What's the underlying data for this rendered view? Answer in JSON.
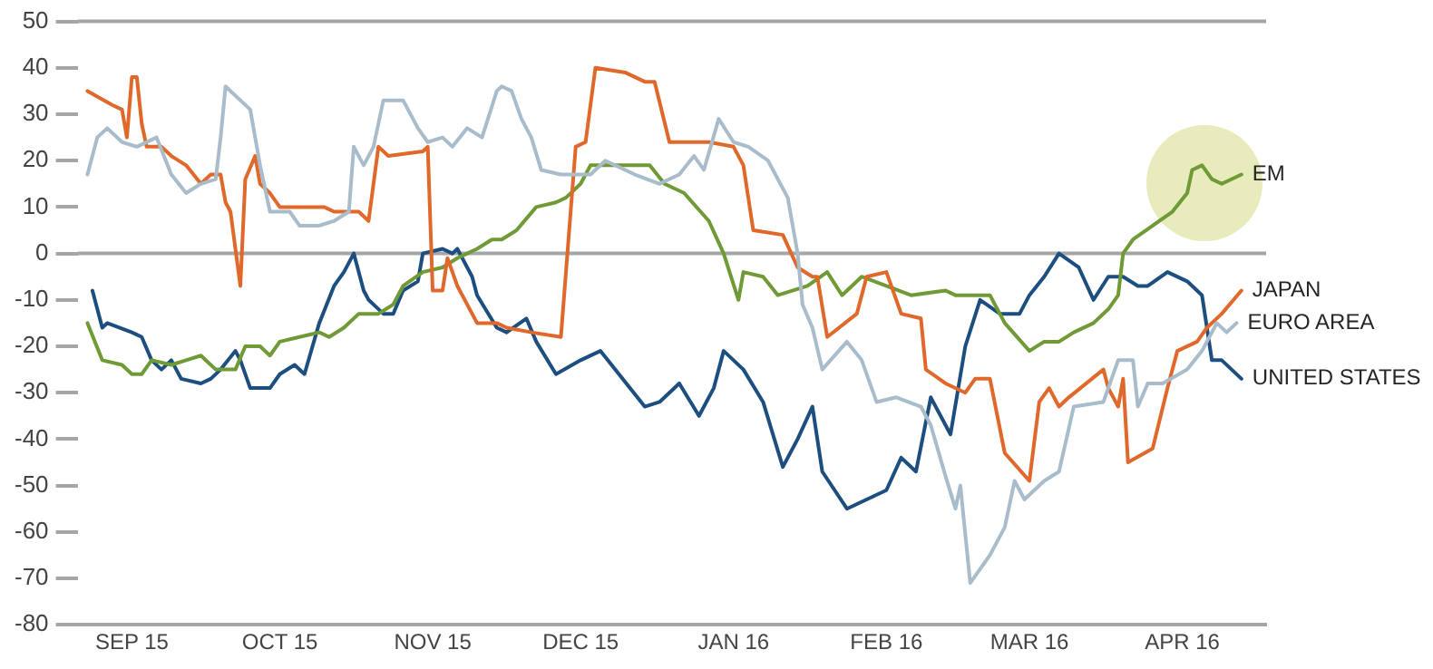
{
  "chart_data": {
    "type": "line",
    "xlim": [
      "2015-09-04",
      "2016-05-02"
    ],
    "ylim": [
      -80,
      50
    ],
    "xticks": [
      {
        "value": "2015-09-15",
        "label": "SEP 15"
      },
      {
        "value": "2015-10-15",
        "label": "OCT 15"
      },
      {
        "value": "2015-11-15",
        "label": "NOV 15"
      },
      {
        "value": "2015-12-15",
        "label": "DEC 15"
      },
      {
        "value": "2016-01-15",
        "label": "JAN 16"
      },
      {
        "value": "2016-02-15",
        "label": "FEB 16"
      },
      {
        "value": "2016-03-15",
        "label": "MAR 16"
      },
      {
        "value": "2016-04-15",
        "label": "APR 16"
      }
    ],
    "yticks": [
      -80,
      -70,
      -60,
      -50,
      -40,
      -30,
      -20,
      -10,
      0,
      10,
      20,
      30,
      40,
      50
    ],
    "grid": false,
    "legend": false,
    "marker": "none",
    "line_style": "solid",
    "ref_lines": [
      {
        "axis": "y",
        "value": 0
      }
    ],
    "series": [
      {
        "name": "EURO AREA",
        "color": "#a9bccb",
        "x": [
          "2015-09-06",
          "2015-09-08",
          "2015-09-10",
          "2015-09-13",
          "2015-09-16",
          "2015-09-20",
          "2015-09-23",
          "2015-09-26",
          "2015-09-29",
          "2015-10-02",
          "2015-10-03",
          "2015-10-04",
          "2015-10-07",
          "2015-10-09",
          "2015-10-11",
          "2015-10-13",
          "2015-10-17",
          "2015-10-19",
          "2015-10-23",
          "2015-10-26",
          "2015-10-29",
          "2015-10-30",
          "2015-11-01",
          "2015-11-03",
          "2015-11-05",
          "2015-11-09",
          "2015-11-12",
          "2015-11-14",
          "2015-11-17",
          "2015-11-19",
          "2015-11-22",
          "2015-11-25",
          "2015-11-28",
          "2015-11-29",
          "2015-12-01",
          "2015-12-03",
          "2015-12-05",
          "2015-12-07",
          "2015-12-11",
          "2015-12-17",
          "2015-12-20",
          "2015-12-26",
          "2015-12-31",
          "2016-01-04",
          "2016-01-07",
          "2016-01-09",
          "2016-01-12",
          "2016-01-15",
          "2016-01-18",
          "2016-01-22",
          "2016-01-26",
          "2016-01-28",
          "2016-01-29",
          "2016-01-31",
          "2016-02-02",
          "2016-02-07",
          "2016-02-10",
          "2016-02-13",
          "2016-02-17",
          "2016-02-22",
          "2016-02-24",
          "2016-02-27",
          "2016-02-29",
          "2016-03-01",
          "2016-03-03",
          "2016-03-07",
          "2016-03-10",
          "2016-03-12",
          "2016-03-14",
          "2016-03-18",
          "2016-03-21",
          "2016-03-24",
          "2016-03-30",
          "2016-04-02",
          "2016-04-05",
          "2016-04-06",
          "2016-04-08",
          "2016-04-11",
          "2016-04-16",
          "2016-04-19",
          "2016-04-22",
          "2016-04-24",
          "2016-04-26"
        ],
        "values": [
          17,
          25,
          27,
          24,
          23,
          25,
          17,
          13,
          15,
          16,
          25,
          36,
          33,
          31,
          19,
          9,
          9,
          6,
          6,
          7,
          9,
          23,
          19,
          23,
          33,
          33,
          27,
          24,
          25,
          23,
          27,
          25,
          35,
          36,
          35,
          29,
          25,
          18,
          17,
          17,
          20,
          17,
          15,
          17,
          21,
          18,
          29,
          24,
          23,
          20,
          12,
          0,
          -11,
          -16,
          -25,
          -19,
          -23,
          -32,
          -31,
          -33,
          -37,
          -48,
          -55,
          -50,
          -71,
          -65,
          -59,
          -49,
          -53,
          -49,
          -47,
          -33,
          -32,
          -23,
          -23,
          -33,
          -28,
          -28,
          -25,
          -21,
          -15,
          -17,
          -15
        ]
      },
      {
        "name": "JAPAN",
        "color": "#e0682b",
        "x": [
          "2015-09-06",
          "2015-09-11",
          "2015-09-13",
          "2015-09-14",
          "2015-09-15",
          "2015-09-16",
          "2015-09-17",
          "2015-09-18",
          "2015-09-21",
          "2015-09-23",
          "2015-09-26",
          "2015-09-29",
          "2015-10-01",
          "2015-10-03",
          "2015-10-04",
          "2015-10-05",
          "2015-10-07",
          "2015-10-08",
          "2015-10-10",
          "2015-10-11",
          "2015-10-13",
          "2015-10-15",
          "2015-10-21",
          "2015-10-24",
          "2015-10-26",
          "2015-10-31",
          "2015-11-02",
          "2015-11-04",
          "2015-11-06",
          "2015-11-13",
          "2015-11-14",
          "2015-11-15",
          "2015-11-17",
          "2015-11-18",
          "2015-11-20",
          "2015-11-24",
          "2015-11-28",
          "2015-11-30",
          "2015-12-05",
          "2015-12-11",
          "2015-12-14",
          "2015-12-16",
          "2015-12-18",
          "2015-12-24",
          "2015-12-28",
          "2015-12-30",
          "2016-01-02",
          "2016-01-10",
          "2016-01-15",
          "2016-01-17",
          "2016-01-19",
          "2016-01-25",
          "2016-01-28",
          "2016-01-31",
          "2016-02-01",
          "2016-02-03",
          "2016-02-09",
          "2016-02-11",
          "2016-02-15",
          "2016-02-18",
          "2016-02-22",
          "2016-02-23",
          "2016-02-27",
          "2016-03-02",
          "2016-03-04",
          "2016-03-07",
          "2016-03-10",
          "2016-03-15",
          "2016-03-17",
          "2016-03-19",
          "2016-03-21",
          "2016-03-23",
          "2016-03-30",
          "2016-03-31",
          "2016-04-02",
          "2016-04-03",
          "2016-04-04",
          "2016-04-09",
          "2016-04-12",
          "2016-04-14",
          "2016-04-18",
          "2016-04-20",
          "2016-04-23",
          "2016-04-27"
        ],
        "values": [
          35,
          32,
          31,
          25,
          38,
          38,
          28,
          23,
          23,
          21,
          19,
          15,
          17,
          17,
          11,
          9,
          -7,
          16,
          21,
          15,
          13,
          10,
          10,
          10,
          9,
          9,
          7,
          23,
          21,
          22,
          23,
          -8,
          -8,
          -1,
          -7,
          -15,
          -15,
          -16,
          -17,
          -18,
          23,
          24,
          40,
          39,
          37,
          37,
          24,
          24,
          23,
          19,
          5,
          4,
          -3,
          -5,
          -5,
          -18,
          -13,
          -5,
          -4,
          -13,
          -14,
          -25,
          -28,
          -30,
          -27,
          -27,
          -43,
          -49,
          -32,
          -29,
          -33,
          -31,
          -25,
          -29,
          -33,
          -27,
          -45,
          -42,
          -29,
          -21,
          -19,
          -16,
          -13,
          -8
        ]
      },
      {
        "name": "EM",
        "color": "#6f9a35",
        "x": [
          "2015-09-06",
          "2015-09-09",
          "2015-09-13",
          "2015-09-15",
          "2015-09-17",
          "2015-09-19",
          "2015-09-23",
          "2015-09-26",
          "2015-09-29",
          "2015-10-02",
          "2015-10-06",
          "2015-10-08",
          "2015-10-11",
          "2015-10-13",
          "2015-10-15",
          "2015-10-19",
          "2015-10-23",
          "2015-10-25",
          "2015-10-28",
          "2015-10-31",
          "2015-11-04",
          "2015-11-07",
          "2015-11-09",
          "2015-11-13",
          "2015-11-17",
          "2015-11-20",
          "2015-11-24",
          "2015-11-27",
          "2015-11-29",
          "2015-12-02",
          "2015-12-06",
          "2015-12-10",
          "2015-12-12",
          "2015-12-15",
          "2015-12-17",
          "2015-12-24",
          "2015-12-29",
          "2016-01-01",
          "2016-01-05",
          "2016-01-10",
          "2016-01-13",
          "2016-01-16",
          "2016-01-17",
          "2016-01-21",
          "2016-01-24",
          "2016-01-30",
          "2016-02-03",
          "2016-02-06",
          "2016-02-10",
          "2016-02-15",
          "2016-02-20",
          "2016-02-27",
          "2016-02-29",
          "2016-03-04",
          "2016-03-07",
          "2016-03-10",
          "2016-03-15",
          "2016-03-18",
          "2016-03-21",
          "2016-03-24",
          "2016-03-28",
          "2016-03-31",
          "2016-04-02",
          "2016-04-03",
          "2016-04-05",
          "2016-04-09",
          "2016-04-13",
          "2016-04-16",
          "2016-04-17",
          "2016-04-19",
          "2016-04-21",
          "2016-04-23",
          "2016-04-27"
        ],
        "values": [
          -15,
          -23,
          -24,
          -26,
          -26,
          -23,
          -24,
          -23,
          -22,
          -25,
          -25,
          -20,
          -20,
          -22,
          -19,
          -18,
          -17,
          -18,
          -16,
          -13,
          -13,
          -11,
          -7,
          -4,
          -3,
          -1,
          1,
          3,
          3,
          5,
          10,
          11,
          12,
          15,
          19,
          19,
          19,
          15,
          13,
          7,
          0,
          -10,
          -4,
          -5,
          -9,
          -7,
          -4,
          -9,
          -5,
          -7,
          -9,
          -8,
          -9,
          -9,
          -9,
          -15,
          -21,
          -19,
          -19,
          -17,
          -15,
          -12,
          -9,
          0,
          3,
          6,
          9,
          13,
          18,
          19,
          16,
          15,
          17
        ]
      },
      {
        "name": "UNITED STATES",
        "color": "#1d4e80",
        "x": [
          "2015-09-07",
          "2015-09-09",
          "2015-09-10",
          "2015-09-15",
          "2015-09-17",
          "2015-09-19",
          "2015-09-21",
          "2015-09-23",
          "2015-09-25",
          "2015-09-29",
          "2015-10-01",
          "2015-10-03",
          "2015-10-06",
          "2015-10-07",
          "2015-10-09",
          "2015-10-13",
          "2015-10-15",
          "2015-10-18",
          "2015-10-20",
          "2015-10-23",
          "2015-10-26",
          "2015-10-28",
          "2015-10-30",
          "2015-11-01",
          "2015-11-02",
          "2015-11-05",
          "2015-11-07",
          "2015-11-09",
          "2015-11-12",
          "2015-11-13",
          "2015-11-17",
          "2015-11-19",
          "2015-11-20",
          "2015-11-23",
          "2015-11-24",
          "2015-11-28",
          "2015-11-30",
          "2015-12-04",
          "2015-12-06",
          "2015-12-10",
          "2015-12-15",
          "2015-12-19",
          "2015-12-22",
          "2015-12-25",
          "2015-12-28",
          "2015-12-31",
          "2016-01-04",
          "2016-01-08",
          "2016-01-11",
          "2016-01-13",
          "2016-01-17",
          "2016-01-21",
          "2016-01-25",
          "2016-01-28",
          "2016-01-31",
          "2016-02-02",
          "2016-02-07",
          "2016-02-15",
          "2016-02-18",
          "2016-02-21",
          "2016-02-24",
          "2016-02-28",
          "2016-03-02",
          "2016-03-05",
          "2016-03-09",
          "2016-03-13",
          "2016-03-15",
          "2016-03-18",
          "2016-03-21",
          "2016-03-25",
          "2016-03-28",
          "2016-03-31",
          "2016-04-03",
          "2016-04-06",
          "2016-04-08",
          "2016-04-12",
          "2016-04-16",
          "2016-04-19",
          "2016-04-21",
          "2016-04-23",
          "2016-04-25",
          "2016-04-27"
        ],
        "values": [
          -8,
          -16,
          -15,
          -17,
          -18,
          -23,
          -25,
          -23,
          -27,
          -28,
          -27,
          -25,
          -21,
          -23,
          -29,
          -29,
          -26,
          -24,
          -26,
          -15,
          -7,
          -4,
          0,
          -8,
          -10,
          -13,
          -13,
          -8,
          -6,
          0,
          1,
          0,
          1,
          -5,
          -9,
          -16,
          -17,
          -14,
          -19,
          -26,
          -23,
          -21,
          -25,
          -29,
          -33,
          -32,
          -28,
          -35,
          -29,
          -21,
          -25,
          -32,
          -46,
          -40,
          -33,
          -47,
          -55,
          -51,
          -44,
          -47,
          -31,
          -39,
          -20,
          -10,
          -13,
          -13,
          -9,
          -5,
          0,
          -3,
          -10,
          -5,
          -5,
          -7,
          -7,
          -4,
          -6,
          -9,
          -23,
          -23,
          -25,
          -27
        ]
      }
    ]
  }
}
